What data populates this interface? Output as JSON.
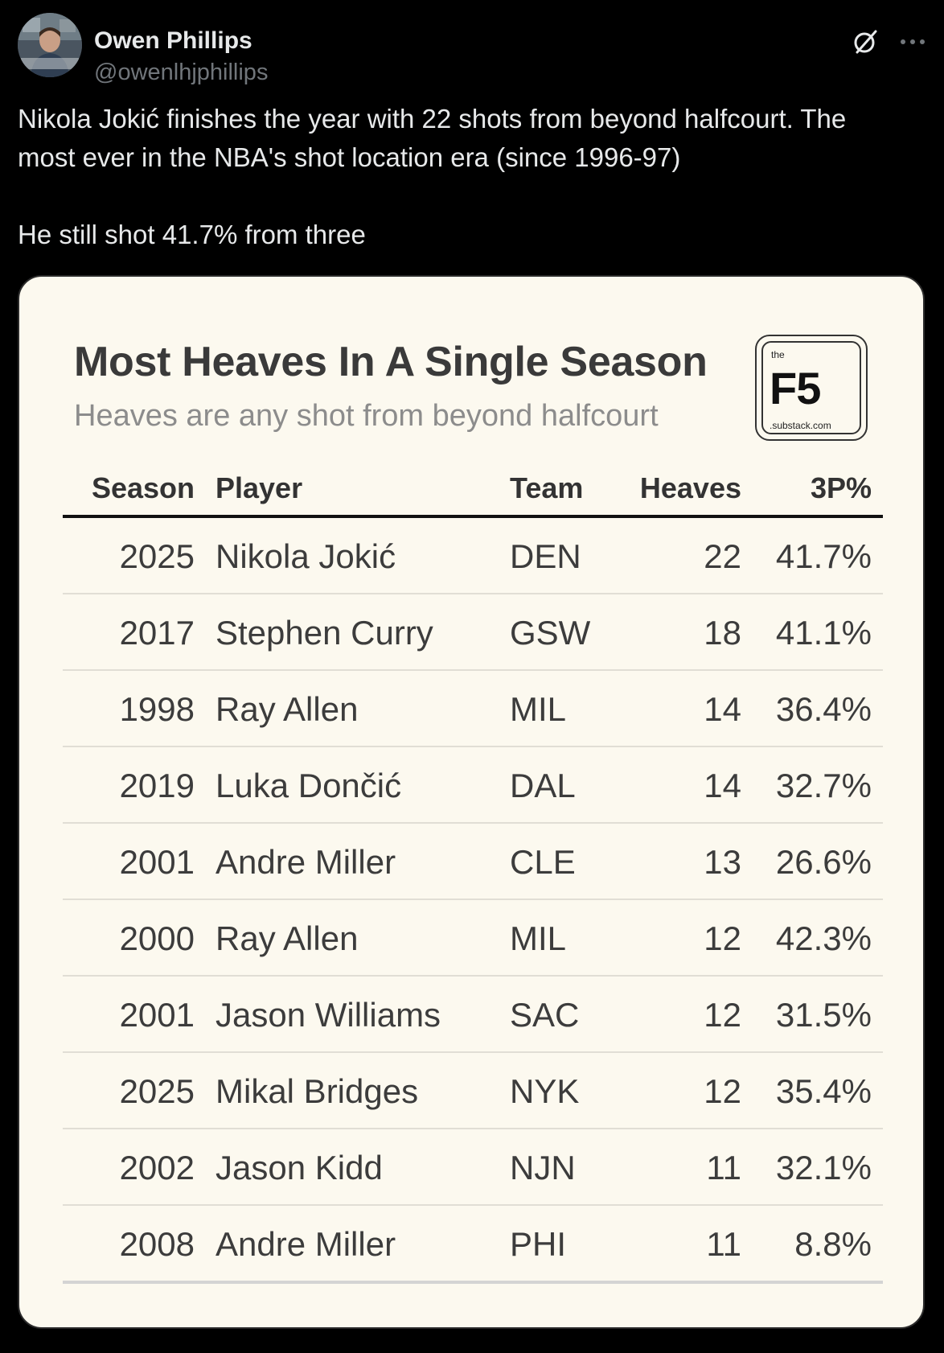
{
  "author": {
    "name": "Owen Phillips",
    "handle": "@owenlhjphillips",
    "avatar_icon": "avatar-photo"
  },
  "post": {
    "line1": "Nikola Jokić finishes the year with 22 shots from beyond halfcourt. The",
    "line2": "most ever in the NBA's shot location era (since 1996-97)",
    "line3": "He still shot 41.7% from three"
  },
  "card": {
    "title": "Most Heaves In A Single Season",
    "subtitle": "Heaves are any shot from beyond halfcourt",
    "logo": {
      "the": "the",
      "mark": "F5",
      "domain": ".substack.com"
    },
    "columns": {
      "season": "Season",
      "player": "Player",
      "team": "Team",
      "heaves": "Heaves",
      "three_pct": "3P%"
    },
    "rows": [
      {
        "season": "2025",
        "player": "Nikola Jokić",
        "team": "DEN",
        "heaves": "22",
        "three_pct": "41.7%"
      },
      {
        "season": "2017",
        "player": "Stephen Curry",
        "team": "GSW",
        "heaves": "18",
        "three_pct": "41.1%"
      },
      {
        "season": "1998",
        "player": "Ray Allen",
        "team": "MIL",
        "heaves": "14",
        "three_pct": "36.4%"
      },
      {
        "season": "2019",
        "player": "Luka Dončić",
        "team": "DAL",
        "heaves": "14",
        "three_pct": "32.7%"
      },
      {
        "season": "2001",
        "player": "Andre Miller",
        "team": "CLE",
        "heaves": "13",
        "three_pct": "26.6%"
      },
      {
        "season": "2000",
        "player": "Ray Allen",
        "team": "MIL",
        "heaves": "12",
        "three_pct": "42.3%"
      },
      {
        "season": "2001",
        "player": "Jason Williams",
        "team": "SAC",
        "heaves": "12",
        "three_pct": "31.5%"
      },
      {
        "season": "2025",
        "player": "Mikal Bridges",
        "team": "NYK",
        "heaves": "12",
        "three_pct": "35.4%"
      },
      {
        "season": "2002",
        "player": "Jason Kidd",
        "team": "NJN",
        "heaves": "11",
        "three_pct": "32.1%"
      },
      {
        "season": "2008",
        "player": "Andre Miller",
        "team": "PHI",
        "heaves": "11",
        "three_pct": "8.8%"
      }
    ]
  },
  "icons": {
    "grok": "grok-icon",
    "more": "more-options-icon"
  },
  "colors": {
    "background": "#000000",
    "text_primary": "#e7e9ea",
    "text_secondary": "#71767b",
    "card_background": "#fcf9ef"
  }
}
